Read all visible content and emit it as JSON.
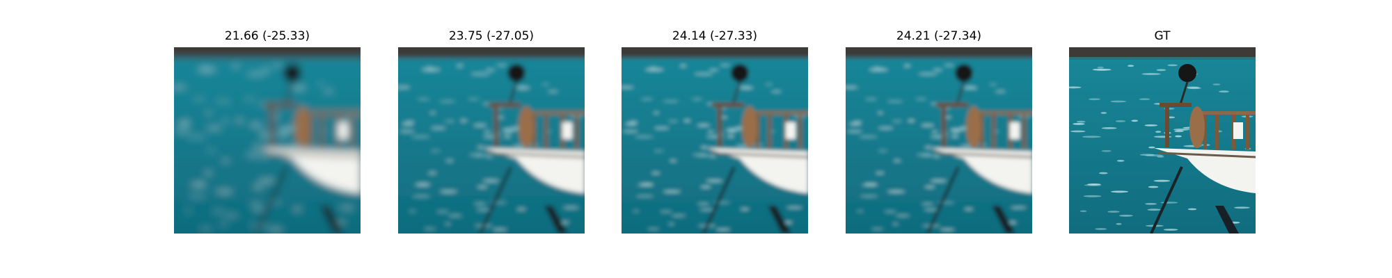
{
  "figure": {
    "panels": [
      {
        "title": "21.66 (-25.33)",
        "blur": 5.5,
        "kind": "reconstruction"
      },
      {
        "title": "23.75 (-27.05)",
        "blur": 3.2,
        "kind": "reconstruction"
      },
      {
        "title": "24.14 (-27.33)",
        "blur": 3.0,
        "kind": "reconstruction"
      },
      {
        "title": "24.21 (-27.34)",
        "blur": 2.9,
        "kind": "reconstruction"
      },
      {
        "title": "GT",
        "blur": 0.0,
        "kind": "ground-truth"
      }
    ],
    "scene": {
      "water_color": "#1a8a9c",
      "water_dark_color": "#0f6a7c",
      "shore_color": "#3e3a38",
      "hull_color": "#f3f3ef",
      "rail_color": "#6a4a30",
      "buoy_color": "#161616"
    }
  }
}
